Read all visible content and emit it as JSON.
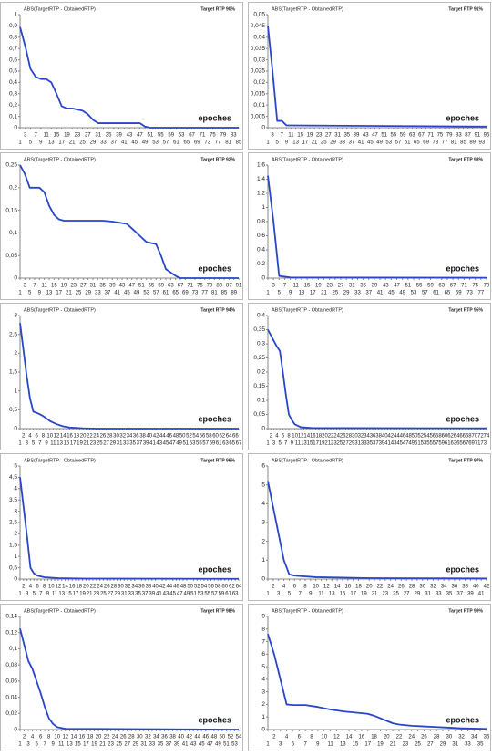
{
  "chart_data": [
    {
      "type": "line",
      "title": "ABS(TargetRTP - ObtainedRTP)",
      "annotation": "Target RTP 90%",
      "xlabel": "epoches",
      "color": "#2846c8",
      "x": [
        1,
        3,
        5,
        7,
        9,
        11,
        13,
        15,
        17,
        19,
        21,
        23,
        25,
        27,
        29,
        31,
        33,
        35,
        47,
        49,
        51,
        85
      ],
      "values": [
        0.89,
        0.72,
        0.52,
        0.45,
        0.43,
        0.43,
        0.4,
        0.3,
        0.19,
        0.17,
        0.17,
        0.16,
        0.15,
        0.12,
        0.07,
        0.04,
        0.04,
        0.04,
        0.04,
        0.01,
        0,
        0
      ],
      "xlim": [
        1,
        85
      ],
      "xticks": [
        1,
        3,
        5,
        7,
        9,
        11,
        13,
        15,
        17,
        19,
        21,
        23,
        25,
        27,
        29,
        31,
        33,
        35,
        37,
        39,
        41,
        43,
        45,
        47,
        49,
        51,
        53,
        55,
        57,
        59,
        61,
        63,
        65,
        67,
        69,
        71,
        73,
        75,
        77,
        79,
        81,
        83,
        85
      ],
      "ylim": [
        0,
        1
      ],
      "yticks": [
        0,
        {
          "value": 0.1,
          "label": "0,1"
        },
        {
          "value": 0.2,
          "label": "0,2"
        },
        {
          "value": 0.3,
          "label": "0,3"
        },
        {
          "value": 0.4,
          "label": "0,4"
        },
        {
          "value": 0.5,
          "label": "0,5"
        },
        {
          "value": 0.6,
          "label": "0,6"
        },
        {
          "value": 0.7,
          "label": "0,7"
        },
        {
          "value": 0.8,
          "label": "0,8"
        },
        {
          "value": 0.9,
          "label": "0,9"
        },
        1
      ]
    },
    {
      "type": "line",
      "title": "ABS(TargetRTP - ObtainedRTP)",
      "annotation": "Target RTP 91%",
      "xlabel": "epoches",
      "color": "#2846c8",
      "x": [
        1,
        3,
        5,
        7,
        9,
        11,
        95
      ],
      "values": [
        0.045,
        0.025,
        0.003,
        0.003,
        0.001,
        0.001,
        0.0005
      ],
      "xlim": [
        1,
        95
      ],
      "xticks": [
        1,
        3,
        5,
        7,
        9,
        11,
        13,
        15,
        17,
        19,
        21,
        23,
        25,
        27,
        29,
        31,
        33,
        35,
        37,
        39,
        41,
        43,
        45,
        47,
        49,
        51,
        53,
        55,
        57,
        59,
        61,
        63,
        65,
        67,
        69,
        71,
        73,
        75,
        77,
        79,
        81,
        83,
        85,
        87,
        89,
        91,
        93,
        95
      ],
      "ylim": [
        0,
        0.05
      ],
      "yticks": [
        0,
        {
          "value": 0.005,
          "label": "0,005"
        },
        {
          "value": 0.01,
          "label": "0,01"
        },
        {
          "value": 0.015,
          "label": "0,015"
        },
        {
          "value": 0.02,
          "label": "0,02"
        },
        {
          "value": 0.025,
          "label": "0,025"
        },
        {
          "value": 0.03,
          "label": "0,03"
        },
        {
          "value": 0.035,
          "label": "0,035"
        },
        {
          "value": 0.04,
          "label": "0,04"
        },
        {
          "value": 0.045,
          "label": "0,045"
        },
        {
          "value": 0.05,
          "label": "0,05"
        }
      ]
    },
    {
      "type": "line",
      "title": "ABS(TargetRTP - ObtainedRTP)",
      "annotation": "Target RTP 92%",
      "xlabel": "epoches",
      "color": "#2846c8",
      "x": [
        1,
        3,
        5,
        9,
        11,
        13,
        15,
        17,
        19,
        35,
        39,
        45,
        47,
        51,
        53,
        57,
        59,
        61,
        65,
        67,
        91
      ],
      "values": [
        0.25,
        0.23,
        0.2,
        0.2,
        0.19,
        0.16,
        0.14,
        0.13,
        0.127,
        0.127,
        0.125,
        0.12,
        0.11,
        0.09,
        0.08,
        0.075,
        0.05,
        0.02,
        0.005,
        0,
        0
      ],
      "xlim": [
        1,
        91
      ],
      "xticks": [
        1,
        3,
        5,
        7,
        9,
        11,
        13,
        15,
        17,
        19,
        21,
        23,
        25,
        27,
        29,
        31,
        33,
        35,
        37,
        39,
        41,
        43,
        45,
        47,
        49,
        51,
        53,
        55,
        57,
        59,
        61,
        63,
        65,
        67,
        69,
        71,
        73,
        75,
        77,
        79,
        81,
        83,
        85,
        87,
        89,
        91
      ],
      "ylim": [
        0,
        0.25
      ],
      "yticks": [
        0,
        {
          "value": 0.05,
          "label": "0,05"
        },
        {
          "value": 0.1,
          "label": "0,1"
        },
        {
          "value": 0.15,
          "label": "0,15"
        },
        {
          "value": 0.2,
          "label": "0,2"
        },
        {
          "value": 0.25,
          "label": "0,25"
        }
      ]
    },
    {
      "type": "line",
      "title": "ABS(TargetRTP - ObtainedRTP)",
      "annotation": "Target RTP 93%",
      "xlabel": "epoches",
      "color": "#2846c8",
      "x": [
        1,
        3,
        5,
        7,
        9,
        79
      ],
      "values": [
        1.45,
        0.8,
        0.03,
        0.02,
        0.01,
        0.005
      ],
      "xlim": [
        1,
        79
      ],
      "xticks": [
        1,
        3,
        5,
        7,
        9,
        11,
        13,
        15,
        17,
        19,
        21,
        23,
        25,
        27,
        29,
        31,
        33,
        35,
        37,
        39,
        41,
        43,
        45,
        47,
        49,
        51,
        53,
        55,
        57,
        59,
        61,
        63,
        65,
        67,
        69,
        71,
        73,
        75,
        77,
        79
      ],
      "ylim": [
        0,
        1.6
      ],
      "yticks": [
        0,
        {
          "value": 0.2,
          "label": "0,2"
        },
        {
          "value": 0.4,
          "label": "0,4"
        },
        {
          "value": 0.6,
          "label": "0,6"
        },
        {
          "value": 0.8,
          "label": "0,8"
        },
        1,
        {
          "value": 1.2,
          "label": "1,2"
        },
        {
          "value": 1.4,
          "label": "1,4"
        },
        {
          "value": 1.6,
          "label": "1,6"
        }
      ]
    },
    {
      "type": "line",
      "title": "ABS(TargetRTP - ObtainedRTP)",
      "annotation": "Target RTP 94%",
      "xlabel": "epoches",
      "color": "#2846c8",
      "x": [
        1,
        2,
        3,
        4,
        5,
        6,
        7,
        8,
        9,
        10,
        12,
        14,
        16,
        20,
        24,
        67
      ],
      "values": [
        2.8,
        2.1,
        1.4,
        0.8,
        0.45,
        0.42,
        0.38,
        0.33,
        0.27,
        0.2,
        0.12,
        0.06,
        0.03,
        0.01,
        0,
        0
      ],
      "xlim": [
        1,
        67
      ],
      "xticks": [
        1,
        2,
        3,
        4,
        5,
        6,
        7,
        8,
        9,
        10,
        11,
        12,
        13,
        14,
        15,
        16,
        17,
        18,
        19,
        20,
        21,
        22,
        23,
        24,
        25,
        26,
        27,
        28,
        29,
        30,
        31,
        32,
        33,
        34,
        35,
        36,
        37,
        38,
        39,
        40,
        41,
        42,
        43,
        44,
        45,
        46,
        47,
        48,
        49,
        50,
        51,
        52,
        53,
        54,
        55,
        56,
        57,
        58,
        59,
        60,
        61,
        62,
        63,
        64,
        65,
        66,
        67
      ],
      "ylim": [
        0,
        3
      ],
      "yticks": [
        0,
        {
          "value": 0.5,
          "label": "0,5"
        },
        1,
        {
          "value": 1.5,
          "label": "1,5"
        },
        2,
        {
          "value": 2.5,
          "label": "2,5"
        },
        3
      ]
    },
    {
      "type": "line",
      "title": "ABS(TargetRTP - ObtainedRTP)",
      "annotation": "Target RTP 95%",
      "xlabel": "epoches",
      "color": "#2846c8",
      "x": [
        1,
        2,
        3,
        4,
        5,
        6,
        7,
        8,
        9,
        10,
        12,
        16,
        74
      ],
      "values": [
        0.35,
        0.33,
        0.31,
        0.29,
        0.275,
        0.2,
        0.12,
        0.05,
        0.03,
        0.015,
        0.005,
        0.002,
        0.001
      ],
      "xlim": [
        1,
        74
      ],
      "xticks": [
        1,
        2,
        3,
        4,
        5,
        6,
        7,
        8,
        9,
        10,
        11,
        12,
        13,
        14,
        15,
        16,
        17,
        18,
        19,
        20,
        21,
        22,
        23,
        24,
        25,
        26,
        27,
        28,
        29,
        30,
        31,
        32,
        33,
        34,
        35,
        36,
        37,
        38,
        39,
        40,
        41,
        42,
        43,
        44,
        45,
        46,
        47,
        48,
        49,
        50,
        51,
        52,
        53,
        54,
        55,
        56,
        57,
        58,
        59,
        60,
        61,
        62,
        63,
        64,
        65,
        66,
        67,
        68,
        69,
        70,
        71,
        72,
        73,
        74
      ],
      "ylim": [
        0,
        0.4
      ],
      "yticks": [
        0,
        {
          "value": 0.05,
          "label": "0,05"
        },
        {
          "value": 0.1,
          "label": "0,1"
        },
        {
          "value": 0.15,
          "label": "0,15"
        },
        {
          "value": 0.2,
          "label": "0,2"
        },
        {
          "value": 0.25,
          "label": "0,25"
        },
        {
          "value": 0.3,
          "label": "0,3"
        },
        {
          "value": 0.35,
          "label": "0,35"
        },
        {
          "value": 0.4,
          "label": "0,4"
        }
      ]
    },
    {
      "type": "line",
      "title": "ABS(TargetRTP - ObtainedRTP)",
      "annotation": "Target RTP 96%",
      "xlabel": "epoches",
      "color": "#2846c8",
      "x": [
        1,
        2,
        3,
        4,
        5,
        6,
        8,
        12,
        20,
        64
      ],
      "values": [
        4.5,
        3.2,
        1.9,
        0.5,
        0.25,
        0.15,
        0.08,
        0.04,
        0.02,
        0.01
      ],
      "xlim": [
        1,
        64
      ],
      "xticks": [
        1,
        2,
        3,
        4,
        5,
        6,
        7,
        8,
        9,
        10,
        11,
        12,
        13,
        14,
        15,
        16,
        17,
        18,
        19,
        20,
        21,
        22,
        23,
        24,
        25,
        26,
        27,
        28,
        29,
        30,
        31,
        32,
        33,
        34,
        35,
        36,
        37,
        38,
        39,
        40,
        41,
        42,
        43,
        44,
        45,
        46,
        47,
        48,
        49,
        50,
        51,
        52,
        53,
        54,
        55,
        56,
        57,
        58,
        59,
        60,
        61,
        62,
        63,
        64
      ],
      "ylim": [
        0,
        5
      ],
      "yticks": [
        0,
        {
          "value": 0.5,
          "label": "0,5"
        },
        1,
        {
          "value": 1.5,
          "label": "1,5"
        },
        2,
        {
          "value": 2.5,
          "label": "2,5"
        },
        3,
        {
          "value": 3.5,
          "label": "3,5"
        },
        4,
        {
          "value": 4.5,
          "label": "4,5"
        },
        5
      ]
    },
    {
      "type": "line",
      "title": "ABS(TargetRTP - ObtainedRTP)",
      "annotation": "Target RTP 97%",
      "xlabel": "epoches",
      "color": "#2846c8",
      "x": [
        1,
        2,
        3,
        4,
        5,
        6,
        10,
        20,
        42
      ],
      "values": [
        5.2,
        3.8,
        2.4,
        1,
        0.25,
        0.18,
        0.1,
        0.05,
        0.03
      ],
      "xlim": [
        1,
        42
      ],
      "xticks": [
        1,
        2,
        3,
        4,
        5,
        6,
        7,
        8,
        9,
        10,
        11,
        12,
        13,
        14,
        15,
        16,
        17,
        18,
        19,
        20,
        21,
        22,
        23,
        24,
        25,
        26,
        27,
        28,
        29,
        30,
        31,
        32,
        33,
        34,
        35,
        36,
        37,
        38,
        39,
        40,
        41,
        42
      ],
      "ylim": [
        0,
        6
      ],
      "yticks": [
        0,
        1,
        2,
        3,
        4,
        5,
        6
      ]
    },
    {
      "type": "line",
      "title": "ABS(TargetRTP - ObtainedRTP)",
      "annotation": "Target RTP 98%",
      "xlabel": "epoches",
      "color": "#2846c8",
      "x": [
        1,
        2,
        3,
        4,
        5,
        6,
        7,
        8,
        9,
        10,
        12,
        54
      ],
      "values": [
        0.125,
        0.105,
        0.085,
        0.075,
        0.06,
        0.045,
        0.028,
        0.014,
        0.007,
        0.003,
        0.001,
        0
      ],
      "xlim": [
        1,
        54
      ],
      "xticks": [
        1,
        2,
        3,
        4,
        5,
        6,
        7,
        8,
        9,
        10,
        11,
        12,
        13,
        14,
        15,
        16,
        17,
        18,
        19,
        20,
        21,
        22,
        23,
        24,
        25,
        26,
        27,
        28,
        29,
        30,
        31,
        32,
        33,
        34,
        35,
        36,
        37,
        38,
        39,
        40,
        41,
        42,
        43,
        44,
        45,
        46,
        47,
        48,
        49,
        50,
        51,
        52,
        53,
        54
      ],
      "ylim": [
        0,
        0.14
      ],
      "yticks": [
        0,
        {
          "value": 0.02,
          "label": "0,02"
        },
        {
          "value": 0.04,
          "label": "0,04"
        },
        {
          "value": 0.06,
          "label": "0,06"
        },
        {
          "value": 0.08,
          "label": "0,08"
        },
        {
          "value": 0.1,
          "label": "0,1"
        },
        {
          "value": 0.12,
          "label": "0,12"
        },
        {
          "value": 0.14,
          "label": "0,14"
        }
      ]
    },
    {
      "type": "line",
      "title": "ABS(TargetRTP - ObtainedRTP)",
      "annotation": "Target RTP 99%",
      "xlabel": "epoches",
      "color": "#2846c8",
      "x": [
        1,
        2,
        3,
        4,
        5,
        7,
        9,
        11,
        13,
        15,
        17,
        18,
        19,
        20,
        21,
        22,
        24,
        26,
        28,
        30,
        32,
        36
      ],
      "values": [
        7.6,
        6,
        4,
        2,
        1.95,
        1.95,
        1.8,
        1.6,
        1.45,
        1.35,
        1.25,
        1.1,
        0.9,
        0.7,
        0.5,
        0.4,
        0.3,
        0.25,
        0.2,
        0.15,
        0.1,
        0.05
      ],
      "xlim": [
        1,
        36
      ],
      "xticks": [
        1,
        2,
        3,
        4,
        5,
        6,
        7,
        8,
        9,
        10,
        11,
        12,
        13,
        14,
        15,
        16,
        17,
        18,
        19,
        20,
        21,
        22,
        23,
        24,
        25,
        26,
        27,
        28,
        29,
        30,
        31,
        32,
        33,
        34,
        35,
        36
      ],
      "ylim": [
        0,
        9
      ],
      "yticks": [
        0,
        1,
        2,
        3,
        4,
        5,
        6,
        7,
        8,
        9
      ]
    }
  ]
}
